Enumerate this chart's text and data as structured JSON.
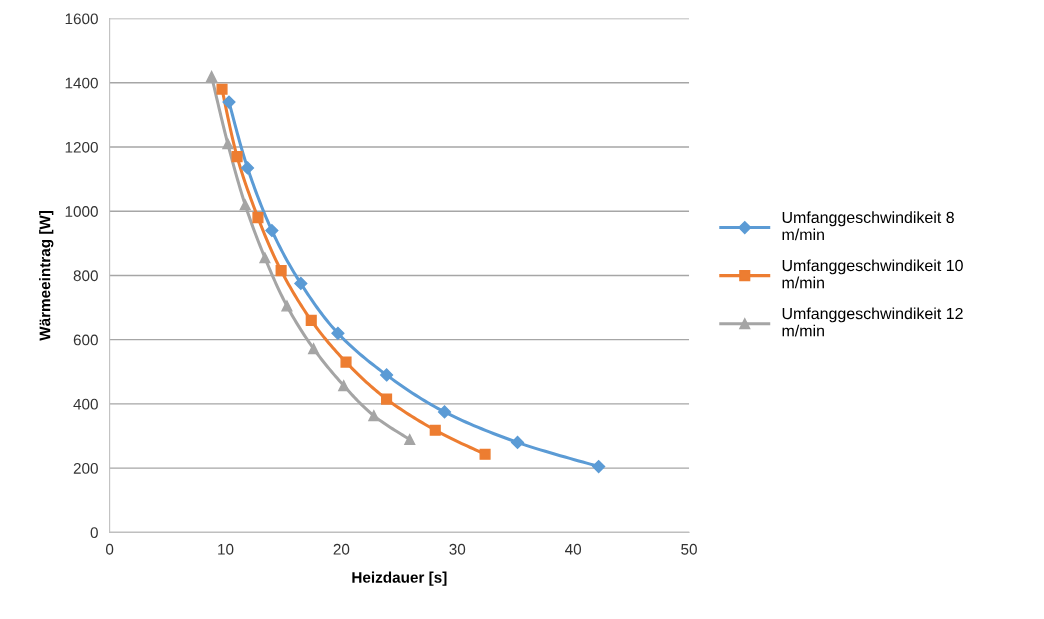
{
  "chart_data": {
    "type": "line",
    "xlabel": "Heizdauer [s]",
    "ylabel": "Wärmeeintrag [W]",
    "xlim": [
      0,
      50
    ],
    "xticks": [
      0,
      10,
      20,
      30,
      40,
      50
    ],
    "ylim": [
      0,
      1600
    ],
    "yticks": [
      0,
      200,
      400,
      600,
      800,
      1000,
      1200,
      1400,
      1600
    ],
    "grid": "y",
    "legend": "right",
    "line_style": "solid",
    "series": [
      {
        "name": "Umfanggeschwindikeit 8 m/min",
        "color": "#5b9bd5",
        "marker": "diamond",
        "x": [
          10.3,
          11.9,
          14.0,
          16.5,
          19.7,
          23.9,
          28.9,
          35.2,
          42.2
        ],
        "values": [
          1340,
          1135,
          940,
          775,
          620,
          490,
          375,
          280,
          205
        ]
      },
      {
        "name": "Umfanggeschwindikeit 10 m/min",
        "color": "#ed7d31",
        "marker": "square",
        "x": [
          9.7,
          11.0,
          12.8,
          14.8,
          17.4,
          20.4,
          23.9,
          28.1,
          32.4
        ],
        "values": [
          1380,
          1170,
          980,
          815,
          660,
          530,
          415,
          318,
          243
        ]
      },
      {
        "name": "Umfanggeschwindikeit 12 m/min",
        "color": "#a5a5a5",
        "marker": "triangle",
        "x": [
          8.8,
          10.2,
          11.7,
          13.4,
          15.3,
          17.6,
          20.2,
          22.8,
          25.9
        ],
        "values": [
          1420,
          1210,
          1020,
          855,
          705,
          572,
          457,
          363,
          289
        ]
      }
    ]
  }
}
